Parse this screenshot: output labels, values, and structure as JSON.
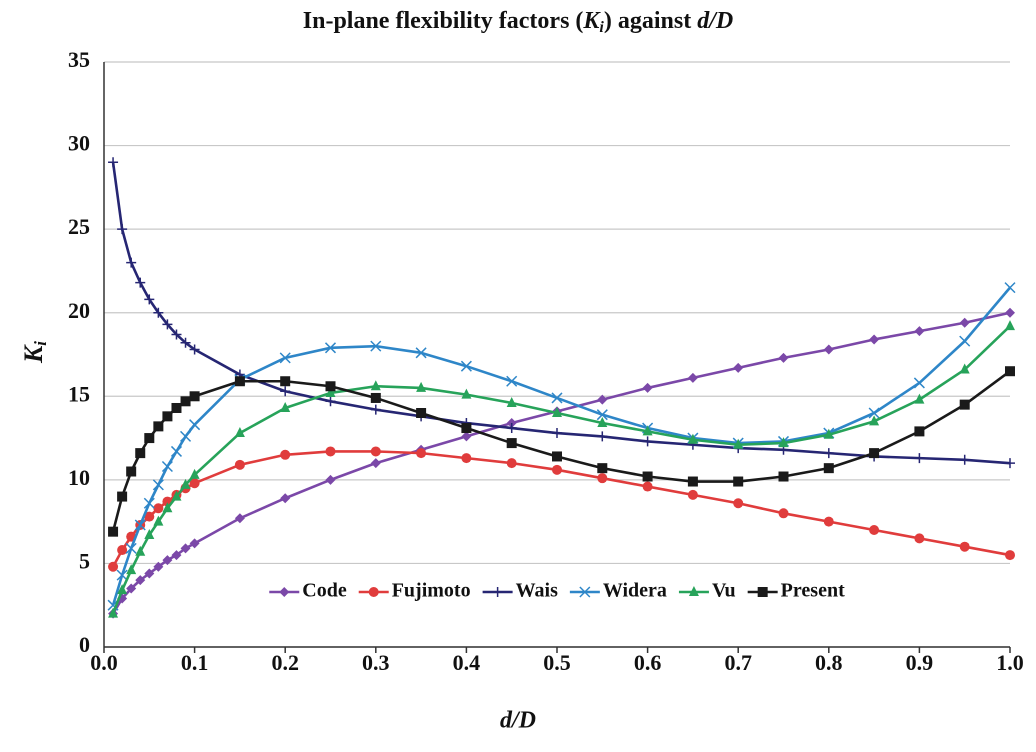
{
  "chart_data": {
    "type": "line",
    "title": [
      "In-plane flexibility factors (",
      "K",
      "i",
      ") against ",
      "d/D"
    ],
    "xlabel": "d/D",
    "ylabel": [
      "K",
      "i"
    ],
    "x": [
      0.01,
      0.02,
      0.03,
      0.04,
      0.05,
      0.06,
      0.07,
      0.08,
      0.09,
      0.1,
      0.15,
      0.2,
      0.25,
      0.3,
      0.35,
      0.4,
      0.45,
      0.5,
      0.55,
      0.6,
      0.65,
      0.7,
      0.75,
      0.8,
      0.85,
      0.9,
      0.95,
      1.0
    ],
    "series": [
      {
        "name": "Code",
        "color": "#7b48a8",
        "marker": "diamond",
        "values": [
          2.0,
          2.9,
          3.5,
          4.0,
          4.4,
          4.8,
          5.2,
          5.5,
          5.9,
          6.2,
          7.7,
          8.9,
          10.0,
          11.0,
          11.8,
          12.6,
          13.4,
          14.1,
          14.8,
          15.5,
          16.1,
          16.7,
          17.3,
          17.8,
          18.4,
          18.9,
          19.4,
          20.0
        ]
      },
      {
        "name": "Fujimoto",
        "color": "#e03c3c",
        "marker": "circle",
        "values": [
          4.8,
          5.8,
          6.6,
          7.3,
          7.8,
          8.3,
          8.7,
          9.1,
          9.5,
          9.8,
          10.9,
          11.5,
          11.7,
          11.7,
          11.6,
          11.3,
          11.0,
          10.6,
          10.1,
          9.6,
          9.1,
          8.6,
          8.0,
          7.5,
          7.0,
          6.5,
          6.0,
          5.5
        ]
      },
      {
        "name": "Wais",
        "color": "#262673",
        "marker": "plus",
        "values": [
          29.0,
          25.0,
          23.0,
          21.8,
          20.8,
          20.0,
          19.3,
          18.7,
          18.2,
          17.8,
          16.3,
          15.3,
          14.7,
          14.2,
          13.8,
          13.4,
          13.1,
          12.8,
          12.6,
          12.3,
          12.1,
          11.9,
          11.8,
          11.6,
          11.4,
          11.3,
          11.2,
          11.0
        ]
      },
      {
        "name": "Widera",
        "color": "#2e86c8",
        "marker": "cross",
        "values": [
          2.5,
          4.3,
          5.9,
          7.3,
          8.6,
          9.7,
          10.8,
          11.7,
          12.6,
          13.3,
          16.0,
          17.3,
          17.9,
          18.0,
          17.6,
          16.8,
          15.9,
          14.9,
          13.9,
          13.1,
          12.5,
          12.2,
          12.3,
          12.8,
          14.0,
          15.8,
          18.3,
          21.5
        ]
      },
      {
        "name": "Vu",
        "color": "#27a35a",
        "marker": "triangle",
        "values": [
          2.0,
          3.4,
          4.6,
          5.7,
          6.7,
          7.5,
          8.3,
          9.0,
          9.7,
          10.3,
          12.8,
          14.3,
          15.2,
          15.6,
          15.5,
          15.1,
          14.6,
          14.0,
          13.4,
          12.9,
          12.4,
          12.1,
          12.2,
          12.7,
          13.5,
          14.8,
          16.6,
          19.2
        ]
      },
      {
        "name": "Present",
        "color": "#1a1a1a",
        "marker": "square",
        "values": [
          6.9,
          9.0,
          10.5,
          11.6,
          12.5,
          13.2,
          13.8,
          14.3,
          14.7,
          15.0,
          15.9,
          15.9,
          15.6,
          14.9,
          14.0,
          13.1,
          12.2,
          11.4,
          10.7,
          10.2,
          9.9,
          9.9,
          10.2,
          10.7,
          11.6,
          12.9,
          14.5,
          16.5
        ]
      }
    ],
    "xlim": [
      0,
      1
    ],
    "xticks": [
      {
        "value": 0,
        "label": "0.0"
      },
      0.1,
      0.2,
      0.3,
      0.4,
      0.5,
      0.6,
      0.7,
      0.8,
      0.9,
      {
        "value": 1,
        "label": "1.0"
      }
    ],
    "ylim": [
      0,
      35
    ],
    "yticks": [
      0,
      5,
      10,
      15,
      20,
      25,
      30,
      35
    ],
    "grid": true,
    "legend": "lower center"
  }
}
